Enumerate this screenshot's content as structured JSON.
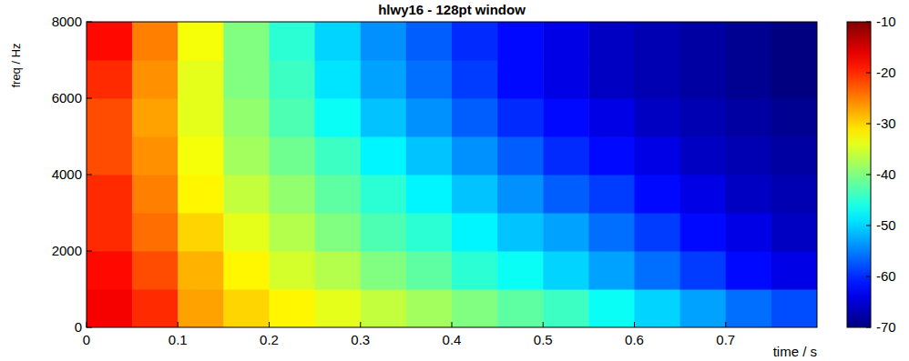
{
  "chart_data": {
    "type": "heatmap",
    "title": "hlwy16 - 128pt window",
    "x_label": "time / s",
    "y_label": "freq / Hz",
    "x_bins": [
      0,
      0.05,
      0.1,
      0.15,
      0.2,
      0.25,
      0.3,
      0.35,
      0.4,
      0.45,
      0.5,
      0.55,
      0.6,
      0.65,
      0.7,
      0.75,
      0.8
    ],
    "y_bins": [
      0,
      1000,
      2000,
      3000,
      4000,
      5000,
      6000,
      7000,
      8000
    ],
    "values": [
      [
        -17,
        -20,
        -27,
        -30,
        -32,
        -34,
        -36,
        -38,
        -40,
        -42,
        -44,
        -47,
        -50,
        -53,
        -56,
        -58
      ],
      [
        -18,
        -22,
        -28,
        -32,
        -35,
        -37,
        -40,
        -42,
        -45,
        -47,
        -50,
        -53,
        -56,
        -59,
        -62,
        -64
      ],
      [
        -20,
        -24,
        -30,
        -34,
        -37,
        -40,
        -43,
        -45,
        -48,
        -51,
        -53,
        -56,
        -59,
        -62,
        -64,
        -66
      ],
      [
        -20,
        -25,
        -32,
        -36,
        -39,
        -42,
        -45,
        -48,
        -51,
        -54,
        -57,
        -59,
        -62,
        -64,
        -66,
        -67
      ],
      [
        -22,
        -26,
        -33,
        -38,
        -41,
        -44,
        -48,
        -51,
        -54,
        -57,
        -60,
        -62,
        -64,
        -66,
        -67,
        -68
      ],
      [
        -22,
        -27,
        -34,
        -39,
        -43,
        -47,
        -51,
        -54,
        -57,
        -60,
        -62,
        -64,
        -66,
        -67,
        -68,
        -69
      ],
      [
        -20,
        -26,
        -34,
        -40,
        -44,
        -49,
        -53,
        -56,
        -59,
        -62,
        -64,
        -66,
        -67,
        -68,
        -69,
        -70
      ],
      [
        -18,
        -25,
        -33,
        -40,
        -45,
        -50,
        -54,
        -57,
        -60,
        -62,
        -64,
        -66,
        -67,
        -68,
        -69,
        -70
      ]
    ],
    "xlim": [
      0,
      0.8
    ],
    "xticks": [
      0,
      0.1,
      0.2,
      0.3,
      0.4,
      0.5,
      0.6,
      0.7
    ],
    "ylim": [
      0,
      8000
    ],
    "yticks": [
      0,
      2000,
      4000,
      6000,
      8000
    ],
    "colorbar_lim": [
      -70,
      -10
    ],
    "colorbar_ticks": [
      -70,
      -60,
      -50,
      -40,
      -30,
      -20,
      -10
    ]
  }
}
